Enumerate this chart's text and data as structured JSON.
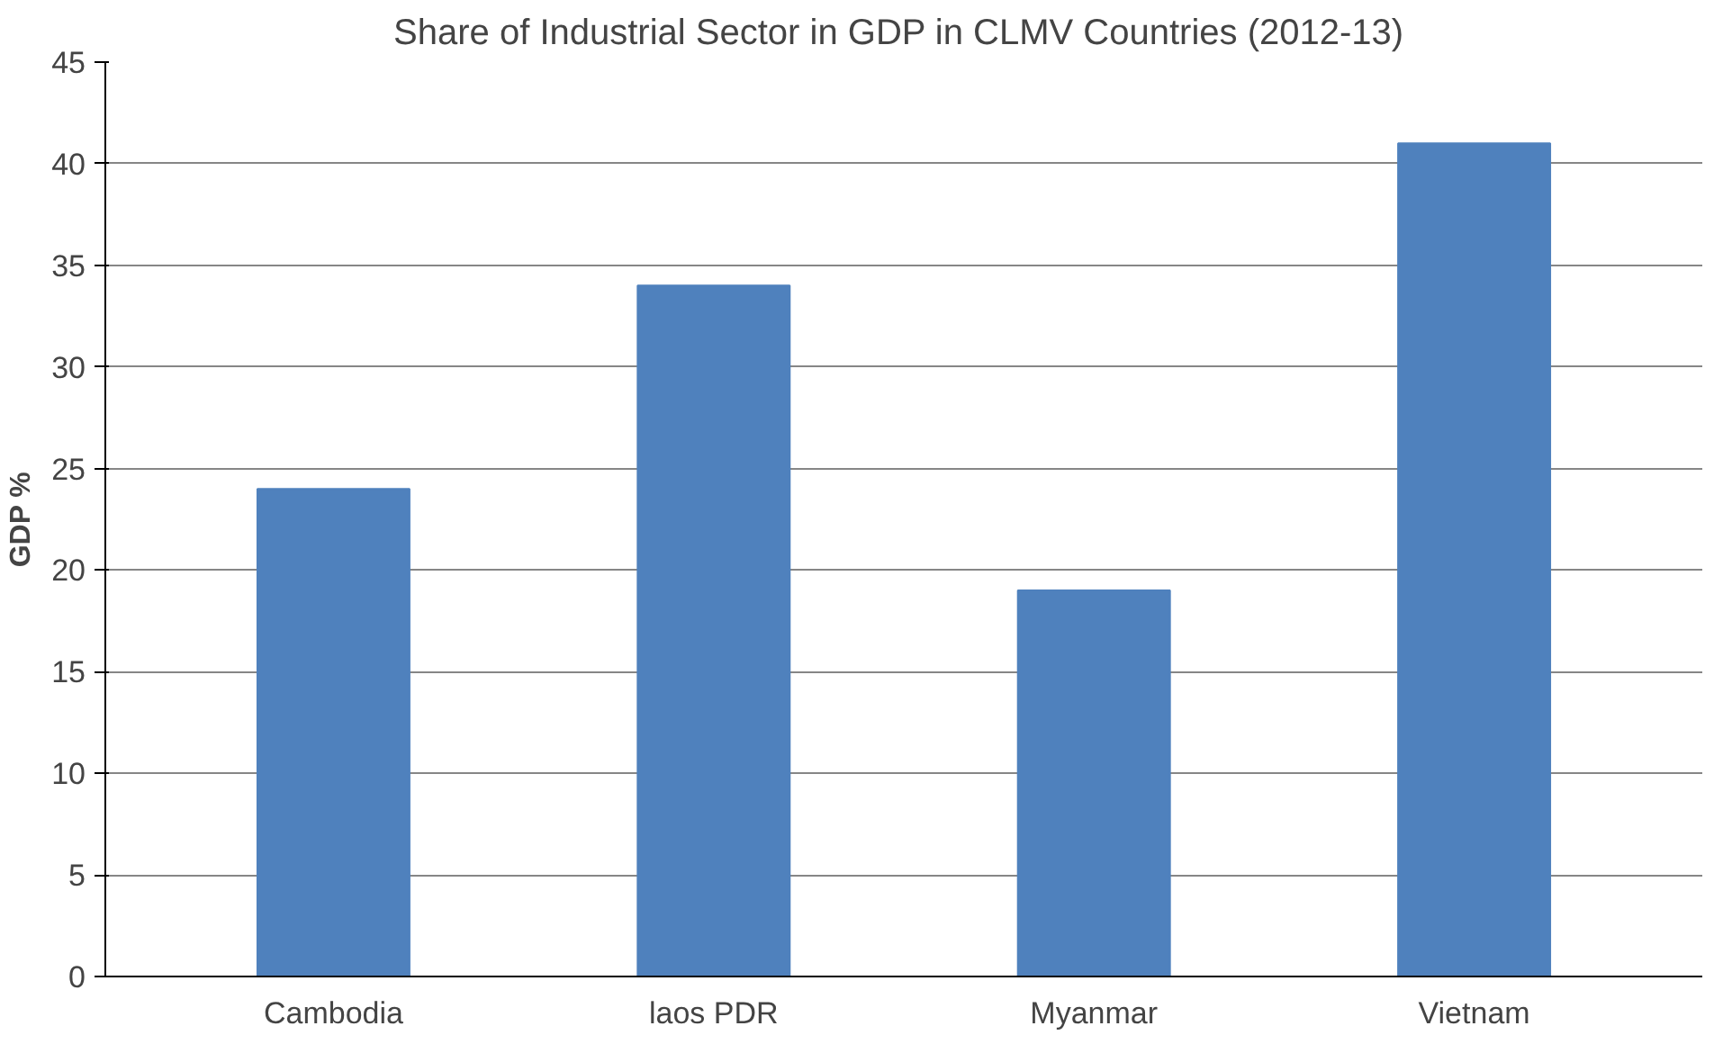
{
  "chart_data": {
    "type": "bar",
    "title": "Share of Industrial Sector in GDP  in CLMV Countries (2012-13)",
    "ylabel": "GDP %",
    "categories": [
      "Cambodia",
      "laos PDR",
      "Myanmar",
      "Vietnam"
    ],
    "values": [
      24,
      34,
      19,
      41
    ],
    "color": "#4f81bd",
    "ylim": [
      0,
      45
    ],
    "yticks": [
      0,
      5,
      10,
      15,
      20,
      25,
      30,
      35,
      40,
      45
    ],
    "grid": "y"
  }
}
